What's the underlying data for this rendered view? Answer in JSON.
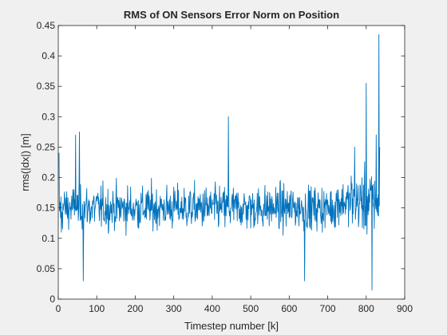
{
  "chart_data": {
    "type": "line",
    "title": "RMS of ON Sensors Error Norm on Position",
    "xlabel": "Timestep number [k]",
    "ylabel": "rms(|dx|) [m]",
    "xlim": [
      0,
      900
    ],
    "ylim": [
      0,
      0.45
    ],
    "xticks": [
      0,
      100,
      200,
      300,
      400,
      500,
      600,
      700,
      800,
      900
    ],
    "xtick_labels": [
      "0",
      "100",
      "200",
      "300",
      "400",
      "500",
      "600",
      "700",
      "800",
      "900"
    ],
    "yticks": [
      0,
      0.05,
      0.1,
      0.15,
      0.2,
      0.25,
      0.3,
      0.35,
      0.4,
      0.45
    ],
    "ytick_labels": [
      "0",
      "0.05",
      "0.1",
      "0.15",
      "0.2",
      "0.25",
      "0.3",
      "0.35",
      "0.4",
      "0.45"
    ],
    "grid": false,
    "colors": {
      "line": "#0072bd",
      "axes": "#262626",
      "plot_bg": "#ffffff",
      "figure_bg": "#f0f0f0"
    },
    "series": [
      {
        "x": [
          1,
          835
        ],
        "y": [
          0.24,
          0.25
        ],
        "samples": 835,
        "y_range_observed": [
          0.015,
          0.435
        ],
        "typical_band": [
          0.08,
          0.23
        ],
        "notable_points": [
          {
            "x": 2,
            "y": 0.24
          },
          {
            "x": 8,
            "y": 0.11
          },
          {
            "x": 45,
            "y": 0.27
          },
          {
            "x": 55,
            "y": 0.275
          },
          {
            "x": 65,
            "y": 0.03
          },
          {
            "x": 442,
            "y": 0.3
          },
          {
            "x": 640,
            "y": 0.03
          },
          {
            "x": 770,
            "y": 0.25
          },
          {
            "x": 800,
            "y": 0.355
          },
          {
            "x": 815,
            "y": 0.015
          },
          {
            "x": 826,
            "y": 0.27
          },
          {
            "x": 833,
            "y": 0.435
          },
          {
            "x": 835,
            "y": 0.25
          }
        ]
      }
    ]
  }
}
